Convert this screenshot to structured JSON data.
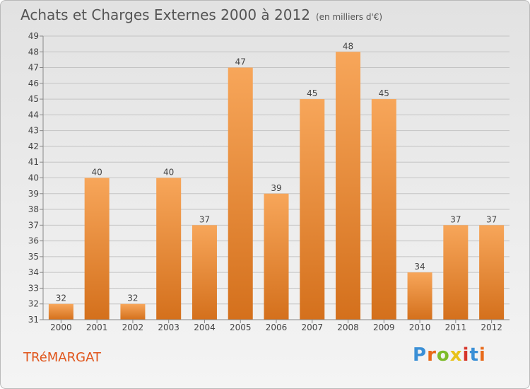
{
  "header": {
    "title": "Achats et Charges Externes 2000 à 2012",
    "unit": "(en milliers d'€)"
  },
  "footer": {
    "commune": "TRéMARGAT",
    "logo_text": "Proxiti"
  },
  "colors": {
    "bar_top": "#f7a65a",
    "bar_bottom": "#d4701c",
    "commune_text": "#e0541a",
    "logo_letters": [
      "#3a8fd6",
      "#e86a1a",
      "#7dbb2a",
      "#e8c21a",
      "#d6342a",
      "#3a8fd6",
      "#e86a1a"
    ]
  },
  "chart_data": {
    "type": "bar",
    "title": "Achats et Charges Externes 2000 à 2012",
    "subtitle": "(en milliers d'€)",
    "xlabel": "",
    "ylabel": "",
    "categories": [
      "2000",
      "2001",
      "2002",
      "2003",
      "2004",
      "2005",
      "2006",
      "2007",
      "2008",
      "2009",
      "2010",
      "2011",
      "2012"
    ],
    "values": [
      32,
      40,
      32,
      40,
      37,
      47,
      39,
      45,
      48,
      45,
      34,
      37,
      37
    ],
    "ylim": [
      31,
      49
    ],
    "yticks": [
      31,
      32,
      33,
      34,
      35,
      36,
      37,
      38,
      39,
      40,
      41,
      42,
      43,
      44,
      45,
      46,
      47,
      48,
      49
    ],
    "grid": true,
    "data_labels": true
  }
}
